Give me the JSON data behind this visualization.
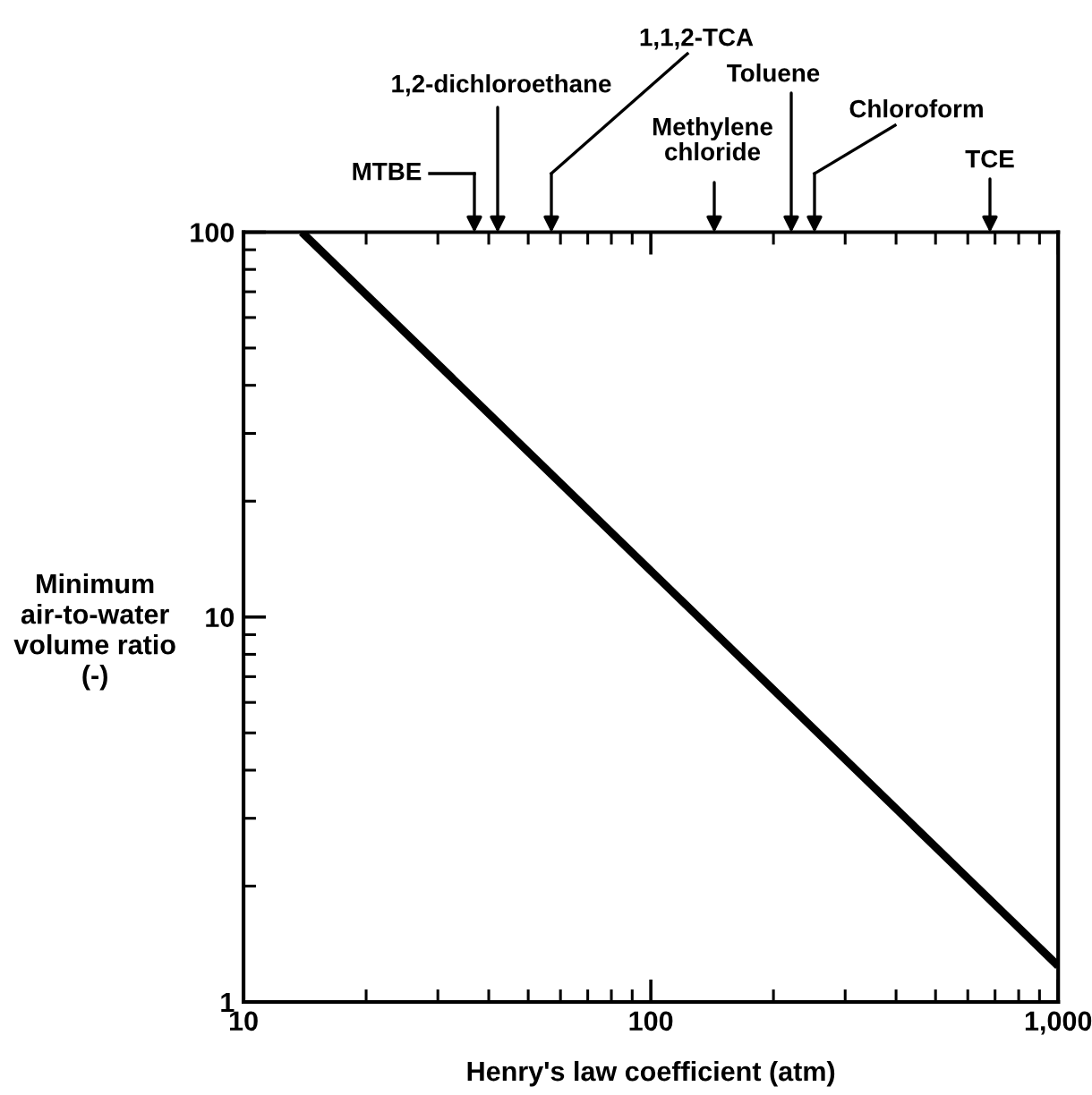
{
  "chart_data": {
    "type": "line",
    "xlabel": "Henry's law coefficient (atm)",
    "ylabel": "Minimum\nair-to-water\nvolume ratio\n(-)",
    "log": "xy",
    "xlim": [
      10,
      1000
    ],
    "ylim": [
      1,
      100
    ],
    "xticks": [
      10,
      100,
      {
        "value": 1000,
        "label": "1,000"
      }
    ],
    "yticks": [
      1,
      10,
      100
    ],
    "series": [
      {
        "color": "#000000",
        "x": [
          13.9,
          1000
        ],
        "values": [
          100,
          1.24
        ]
      }
    ],
    "annotations": [
      "MTBE",
      "1,2-dichloroethane",
      "1,1,2-TCA",
      "Methylene\nchloride",
      "Toluene",
      "Chloroform",
      "TCE"
    ]
  }
}
